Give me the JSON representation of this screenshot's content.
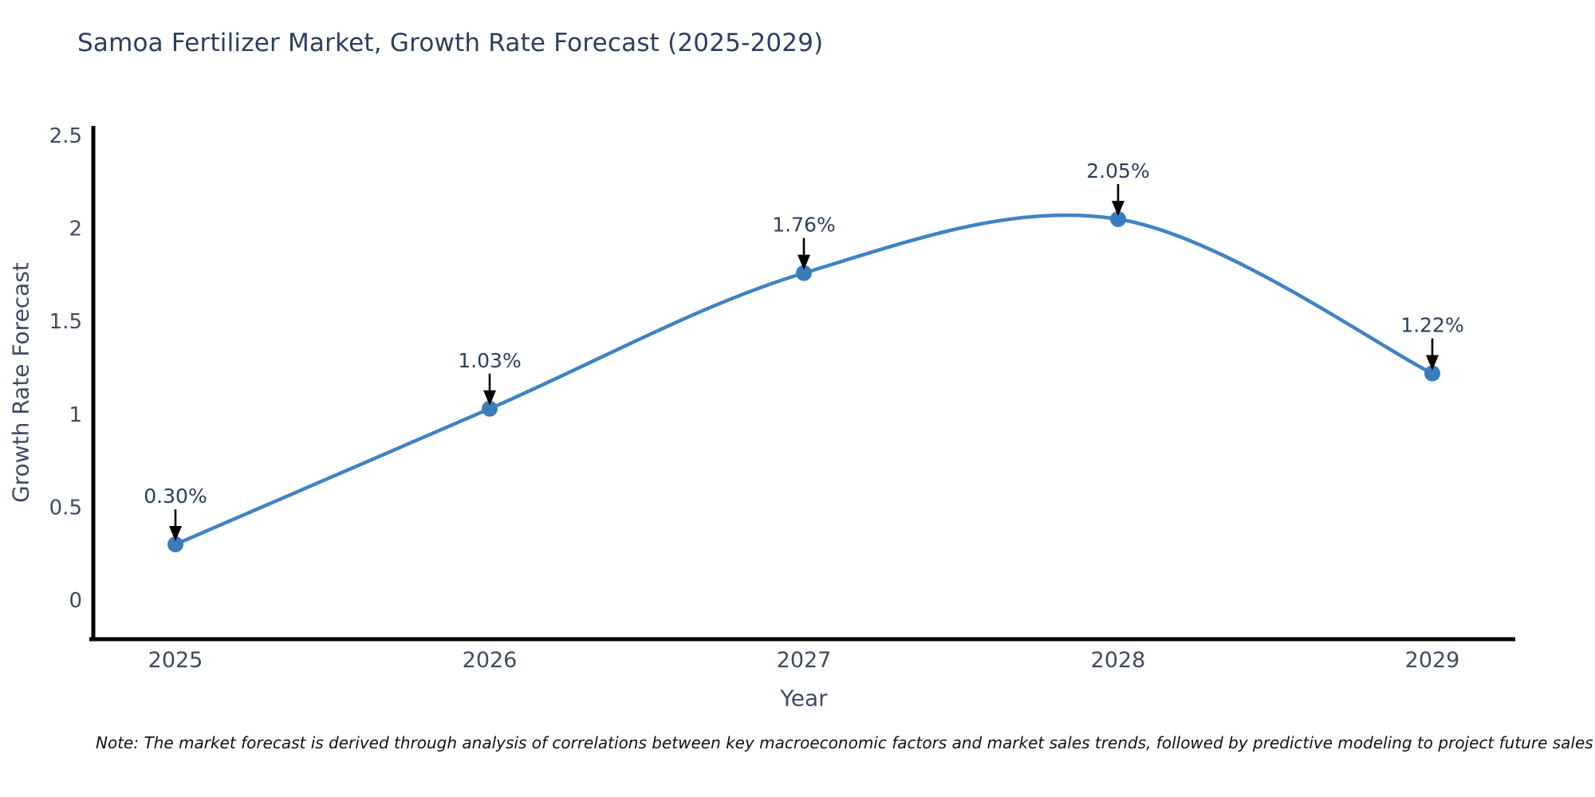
{
  "chart_data": {
    "type": "line",
    "title": "Samoa Fertilizer Market, Growth Rate Forecast (2025-2029)",
    "xlabel": "Year",
    "ylabel": "Growth Rate Forecast",
    "categories": [
      "2025",
      "2026",
      "2027",
      "2028",
      "2029"
    ],
    "series": [
      {
        "name": "Growth Rate Forecast",
        "values": [
          0.3,
          1.03,
          1.76,
          2.05,
          1.22
        ],
        "point_labels": [
          "0.30%",
          "1.03%",
          "1.76%",
          "2.05%",
          "1.22%"
        ]
      }
    ],
    "line_shape": "spline",
    "markers": true,
    "annotations_have_arrows": true,
    "ylim": [
      -0.21,
      2.55
    ],
    "ytick_values": [
      0,
      0.5,
      1,
      1.5,
      2,
      2.5
    ],
    "ytick_labels": [
      "0",
      "0.5",
      "1",
      "1.5",
      "2",
      "2.5"
    ],
    "grid": false,
    "legend_position": "none",
    "colors": {
      "line": "#4083c3",
      "marker": "#3a7dbe",
      "arrow": "#000000",
      "title": "#2a3f5f",
      "axis_text": "#3f4a63",
      "axis_line": "#000000",
      "note_text": "#111111",
      "background": "#ffffff"
    }
  },
  "note": "Note: The market forecast is derived through analysis of correlations between key macroeconomic factors and market sales trends, followed by predictive modeling to project future sales"
}
